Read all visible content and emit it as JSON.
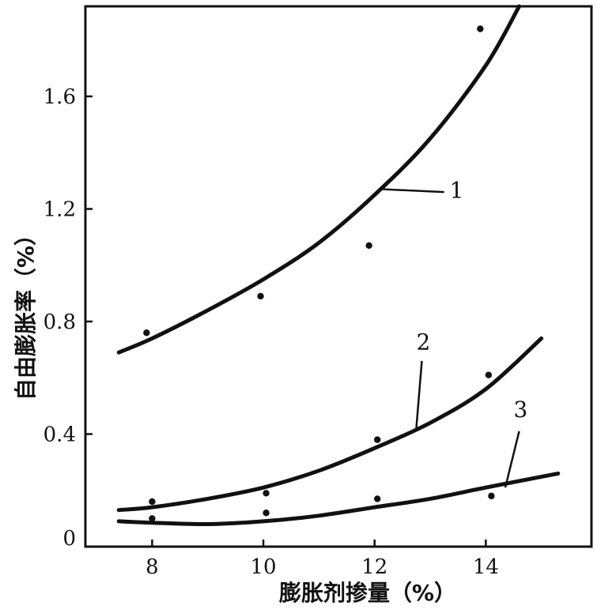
{
  "chart_data": {
    "type": "scatter",
    "xlabel": "膨胀剂掺量（%）",
    "ylabel": "自由膨胀率（%）",
    "xlim": [
      6.8,
      15.9
    ],
    "ylim": [
      0,
      1.92
    ],
    "x_ticks": [
      8,
      10,
      12,
      14
    ],
    "x_tick_labels": [
      "8",
      "10",
      "12",
      "14"
    ],
    "y_ticks": [
      0,
      0.4,
      0.8,
      1.2,
      1.6
    ],
    "y_tick_labels": [
      "0",
      "0.4",
      "0.8",
      "1.2",
      "1.6"
    ],
    "grid": false,
    "legend": "none",
    "series": [
      {
        "label": "1",
        "points": [
          [
            7.9,
            0.76
          ],
          [
            9.95,
            0.89
          ],
          [
            11.9,
            1.07
          ],
          [
            13.9,
            1.84
          ]
        ],
        "curve": [
          [
            7.4,
            0.69
          ],
          [
            8.0,
            0.74
          ],
          [
            9.0,
            0.84
          ],
          [
            10.0,
            0.95
          ],
          [
            11.0,
            1.08
          ],
          [
            12.0,
            1.25
          ],
          [
            13.0,
            1.45
          ],
          [
            14.0,
            1.71
          ],
          [
            14.6,
            1.92
          ]
        ]
      },
      {
        "label": "2",
        "points": [
          [
            8.0,
            0.16
          ],
          [
            10.05,
            0.19
          ],
          [
            12.05,
            0.38
          ],
          [
            14.05,
            0.61
          ]
        ],
        "curve": [
          [
            7.4,
            0.13
          ],
          [
            8.0,
            0.14
          ],
          [
            9.0,
            0.17
          ],
          [
            10.0,
            0.21
          ],
          [
            11.0,
            0.27
          ],
          [
            12.0,
            0.35
          ],
          [
            13.0,
            0.44
          ],
          [
            14.0,
            0.56
          ],
          [
            15.0,
            0.74
          ]
        ]
      },
      {
        "label": "3",
        "points": [
          [
            8.0,
            0.1
          ],
          [
            10.05,
            0.12
          ],
          [
            12.05,
            0.17
          ],
          [
            14.1,
            0.18
          ]
        ],
        "curve": [
          [
            7.4,
            0.09
          ],
          [
            8.0,
            0.085
          ],
          [
            9.0,
            0.08
          ],
          [
            10.0,
            0.09
          ],
          [
            11.0,
            0.11
          ],
          [
            12.0,
            0.14
          ],
          [
            13.0,
            0.17
          ],
          [
            14.0,
            0.21
          ],
          [
            15.3,
            0.26
          ]
        ]
      }
    ]
  }
}
